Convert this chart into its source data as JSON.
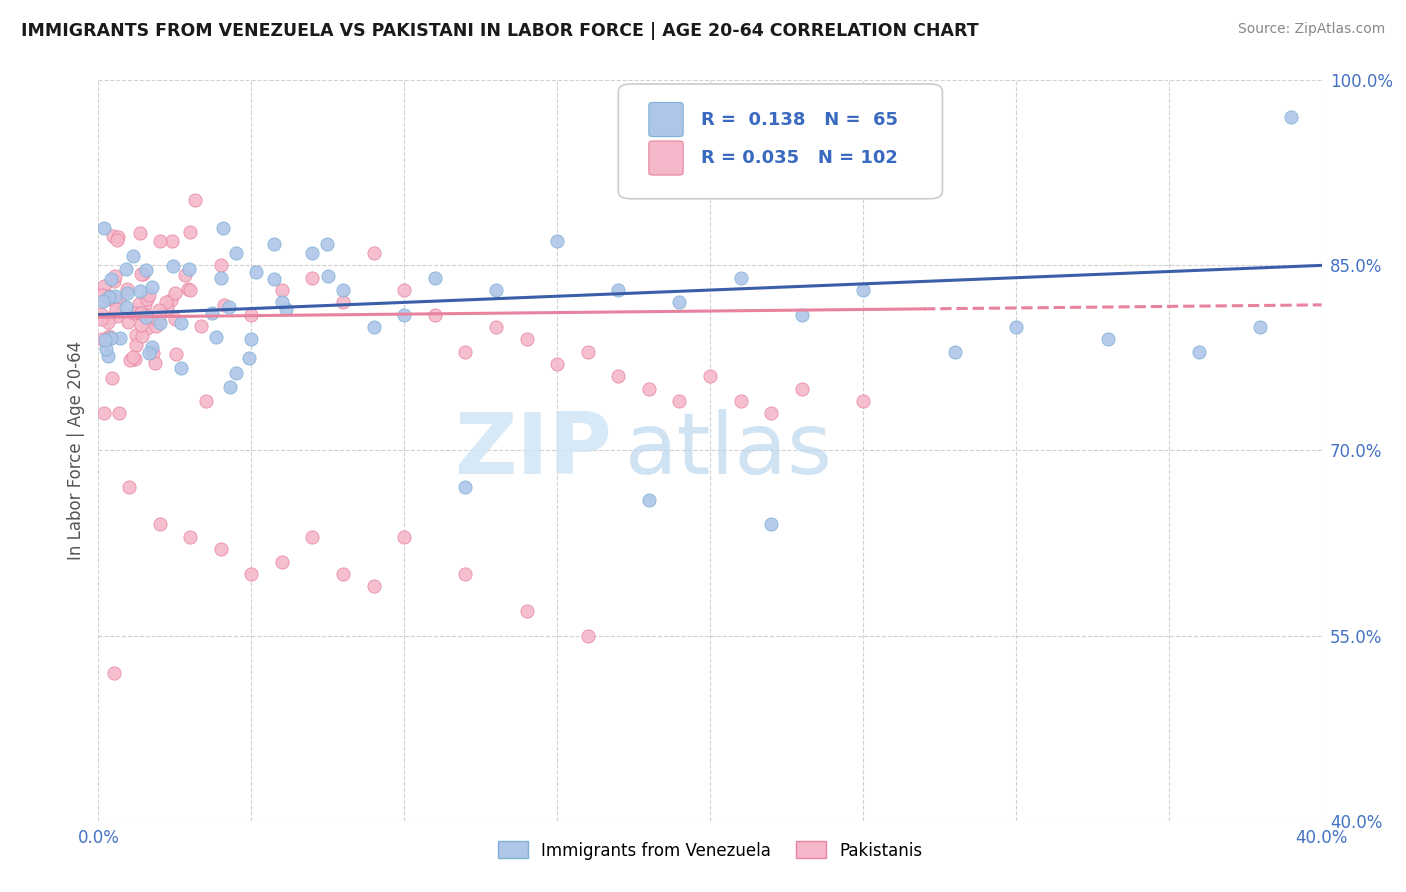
{
  "title": "IMMIGRANTS FROM VENEZUELA VS PAKISTANI IN LABOR FORCE | AGE 20-64 CORRELATION CHART",
  "source": "Source: ZipAtlas.com",
  "ylabel": "In Labor Force | Age 20-64",
  "xlim": [
    0.0,
    0.4
  ],
  "ylim": [
    0.4,
    1.0
  ],
  "xticks": [
    0.0,
    0.05,
    0.1,
    0.15,
    0.2,
    0.25,
    0.3,
    0.35,
    0.4
  ],
  "yticks": [
    0.4,
    0.55,
    0.7,
    0.85,
    1.0
  ],
  "venezuela_color": "#aec6e8",
  "venezuela_edge": "#7fafd4",
  "pakistani_color": "#f5b8cb",
  "pakistani_edge": "#e8849f",
  "trend_venezuela_color": "#3a5fa8",
  "trend_pakistani_color": "#e8839f",
  "watermark_zip": "ZIP",
  "watermark_atlas": "atlas",
  "legend_r_venezuela": "0.138",
  "legend_n_venezuela": "65",
  "legend_r_pakistani": "0.035",
  "legend_n_pakistani": "102",
  "tick_color": "#4472c4",
  "title_color": "#1a1a1a",
  "source_color": "#888888",
  "ylabel_color": "#555555",
  "grid_color": "#cccccc",
  "background_color": "#ffffff"
}
